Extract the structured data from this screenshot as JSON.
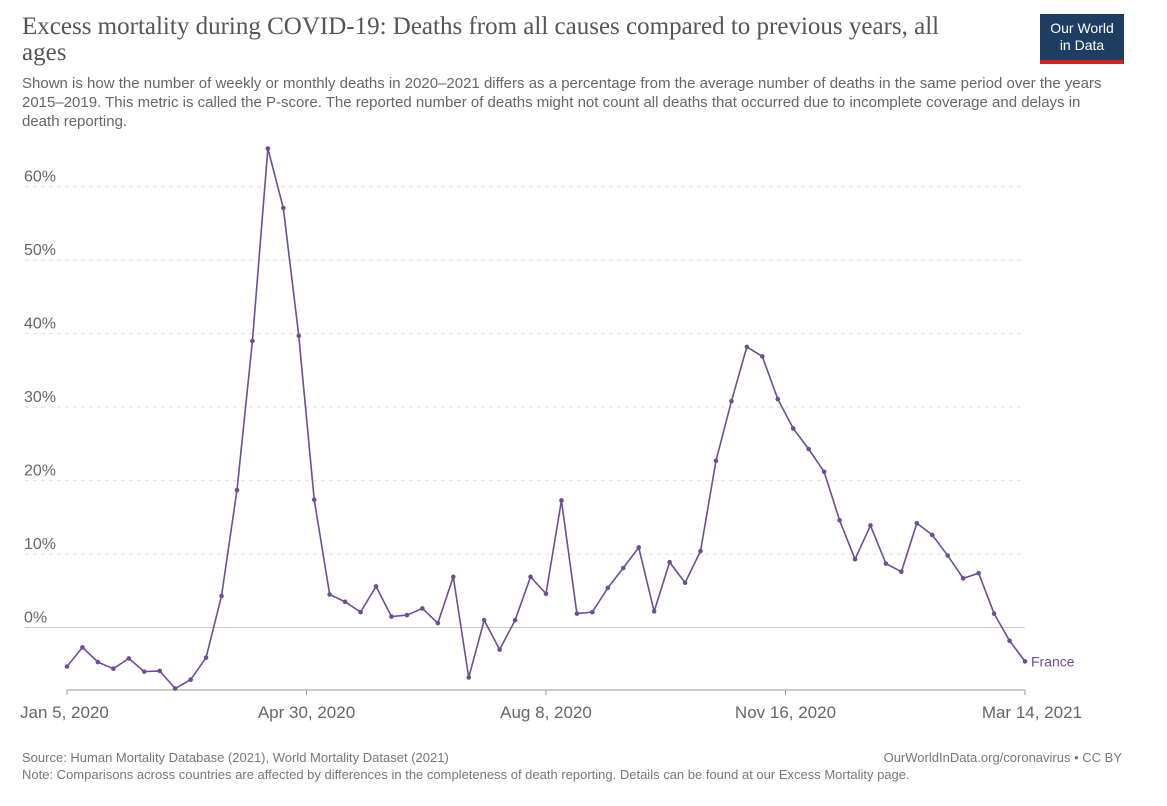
{
  "header": {
    "title": "Excess mortality during COVID-19: Deaths from all causes compared to previous years, all ages",
    "subtitle": "Shown is how the number of weekly or monthly deaths in 2020–2021 differs as a percentage from the average number of deaths in the same period over the years 2015–2019. This metric is called the P-score. The reported number of deaths might not count all deaths that occurred due to incomplete coverage and delays in death reporting.",
    "logo_line1": "Our World",
    "logo_line2": "in Data"
  },
  "footer": {
    "source": "Source: Human Mortality Database (2021), World Mortality Dataset (2021)",
    "license": "OurWorldInData.org/coronavirus • CC BY",
    "note": "Note: Comparisons across countries are affected by differences in the completeness of death reporting. Details can be found at our Excess Mortality page."
  },
  "colors": {
    "series": "#6d4c9a",
    "grid": "#dddddd",
    "text": "#666666"
  },
  "chart_data": {
    "type": "line",
    "grid": "horizontal-dashed",
    "x_start": "Jan 5, 2020",
    "x_end": "Mar 14, 2021",
    "ylim": [
      -8.5,
      65
    ],
    "y_ticks": [
      0,
      10,
      20,
      30,
      40,
      50,
      60
    ],
    "y_tick_labels": [
      "0%",
      "10%",
      "20%",
      "30%",
      "40%",
      "50%",
      "60%"
    ],
    "x_ticks": [
      "Jan 5, 2020",
      "Apr 30, 2020",
      "Aug 8, 2020",
      "Nov 16, 2020",
      "Mar 14, 2021"
    ],
    "series": [
      {
        "name": "France",
        "values": [
          -5.3,
          -2.7,
          -4.7,
          -5.6,
          -4.2,
          -6.0,
          -5.9,
          -8.3,
          -7.1,
          -4.1,
          4.3,
          18.7,
          39.0,
          65.2,
          57.1,
          39.7,
          17.4,
          4.5,
          3.5,
          2.1,
          5.6,
          1.5,
          1.7,
          2.6,
          0.6,
          6.9,
          -6.8,
          1.0,
          -3.0,
          1.0,
          6.9,
          4.6,
          17.3,
          1.9,
          2.1,
          5.4,
          8.1,
          10.9,
          2.2,
          8.9,
          6.1,
          10.4,
          22.7,
          30.8,
          38.2,
          36.9,
          31.1,
          27.1,
          24.3,
          21.2,
          14.6,
          9.3,
          13.9,
          8.7,
          7.6,
          14.2,
          12.6,
          9.8,
          6.7,
          7.4,
          1.9,
          -1.8,
          -4.6
        ]
      }
    ]
  }
}
